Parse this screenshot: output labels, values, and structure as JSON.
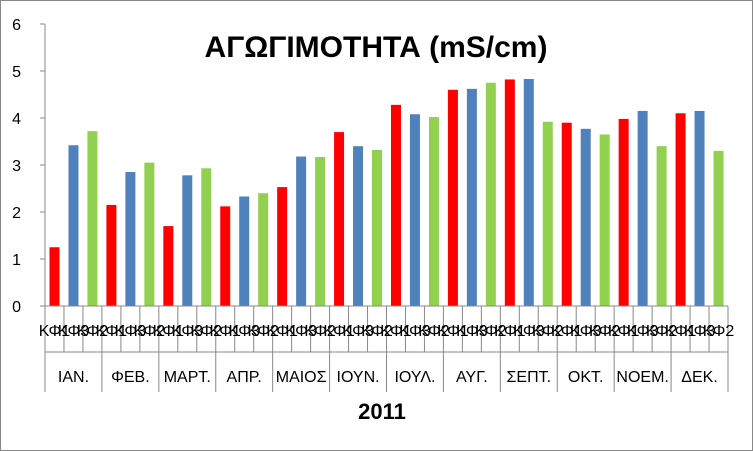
{
  "chart_data": {
    "type": "bar",
    "title": "ΑΓΩΓΙΜΟΤΗΤΑ (mS/cm)",
    "xlabel": "2011",
    "ylabel": "",
    "ylim": [
      0,
      6
    ],
    "yticks": [
      0,
      1,
      2,
      3,
      4,
      5,
      6
    ],
    "grid": false,
    "legend": "none",
    "months": [
      "ΙΑΝ.",
      "ΦΕΒ.",
      "ΜΑΡΤ.",
      "ΑΠΡ.",
      "ΜΑΙΟΣ",
      "ΙΟΥΝ.",
      "ΙΟΥΛ.",
      "ΑΥΓ.",
      "ΣΕΠΤ.",
      "ΟΚΤ.",
      "ΝΟΕΜ.",
      "ΔΕΚ."
    ],
    "categories": [
      "ΚΦ1",
      "ΚΦ3",
      "ΚΦ2",
      "ΚΦ1",
      "ΚΦ3",
      "ΚΦ2",
      "ΚΦ1",
      "ΚΦ3",
      "ΚΦ2",
      "ΚΦ1",
      "ΚΦ3",
      "ΚΦ2",
      "ΚΦ1",
      "ΚΦ3",
      "ΚΦ2",
      "ΚΦ1",
      "ΚΦ3",
      "ΚΦ2",
      "ΚΦ1",
      "ΚΦ3",
      "ΚΦ2",
      "ΚΦ1",
      "ΚΦ3",
      "ΚΦ2",
      "ΚΦ1",
      "ΚΦ3",
      "ΚΦ2",
      "ΚΦ1",
      "ΚΦ3",
      "ΚΦ2",
      "ΚΦ1",
      "ΚΦ3",
      "ΚΦ2",
      "ΚΦ1",
      "ΚΦ3",
      "ΚΦ2"
    ],
    "values": [
      1.25,
      3.42,
      3.72,
      2.15,
      2.85,
      3.05,
      1.7,
      2.78,
      2.93,
      2.12,
      2.33,
      2.4,
      2.53,
      3.18,
      3.17,
      3.7,
      3.4,
      3.32,
      4.28,
      4.08,
      4.02,
      4.6,
      4.62,
      4.75,
      4.82,
      4.83,
      3.92,
      3.9,
      3.77,
      3.65,
      3.98,
      4.15,
      3.4,
      4.1,
      4.15,
      3.3
    ],
    "colors": [
      "#ff0000",
      "#4f81bd",
      "#92d050"
    ]
  }
}
